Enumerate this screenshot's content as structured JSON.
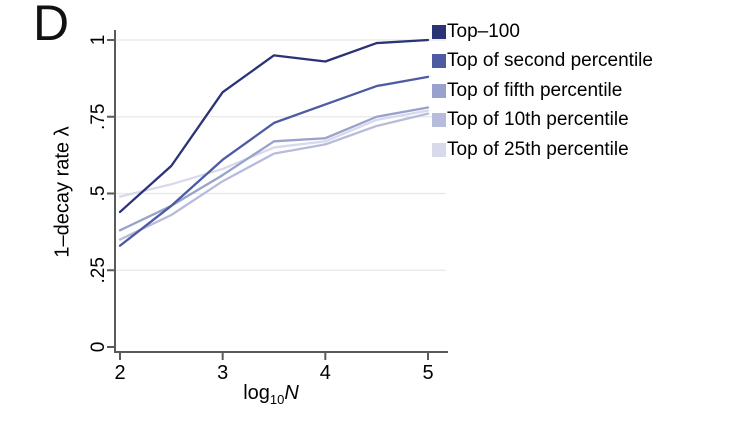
{
  "panel_label": "D",
  "chart_data": {
    "type": "line",
    "title": "",
    "xlabel": {
      "base": "log",
      "sub": "10",
      "variable": "N"
    },
    "ylabel": "1–decay rate λ",
    "x": [
      2,
      2.5,
      3,
      3.5,
      4,
      4.5,
      5
    ],
    "xlim": [
      2,
      5
    ],
    "ylim": [
      0,
      1
    ],
    "x_ticks": [
      {
        "value": 2,
        "label": "2"
      },
      {
        "value": 3,
        "label": "3"
      },
      {
        "value": 4,
        "label": "4"
      },
      {
        "value": 5,
        "label": "5"
      }
    ],
    "y_ticks": [
      {
        "value": 0,
        "label": "0"
      },
      {
        "value": 0.25,
        "label": ".25"
      },
      {
        "value": 0.5,
        "label": ".5"
      },
      {
        "value": 0.75,
        "label": ".75"
      },
      {
        "value": 1,
        "label": "1"
      }
    ],
    "grid": "horizontal",
    "legend_position": "right",
    "axis_color": "#5a5a5a",
    "gridline_color": "#e8e8e8",
    "text_color": "#000000",
    "series": [
      {
        "name": "Top–100",
        "color": "#2b3377",
        "values": [
          0.44,
          0.59,
          0.83,
          0.95,
          0.93,
          0.99,
          1.0
        ]
      },
      {
        "name": "Top of second percentile",
        "color": "#4d5ba3",
        "values": [
          0.33,
          0.46,
          0.61,
          0.73,
          0.79,
          0.85,
          0.88
        ]
      },
      {
        "name": "Top of fifth percentile",
        "color": "#98a2cc",
        "values": [
          0.38,
          0.46,
          0.56,
          0.67,
          0.68,
          0.75,
          0.78
        ]
      },
      {
        "name": "Top of 10th percentile",
        "color": "#b7bcdd",
        "values": [
          0.35,
          0.43,
          0.54,
          0.63,
          0.66,
          0.72,
          0.76
        ]
      },
      {
        "name": "Top of 25th percentile",
        "color": "#d8daeb",
        "values": [
          0.49,
          0.53,
          0.58,
          0.65,
          0.67,
          0.74,
          0.77
        ]
      }
    ]
  }
}
